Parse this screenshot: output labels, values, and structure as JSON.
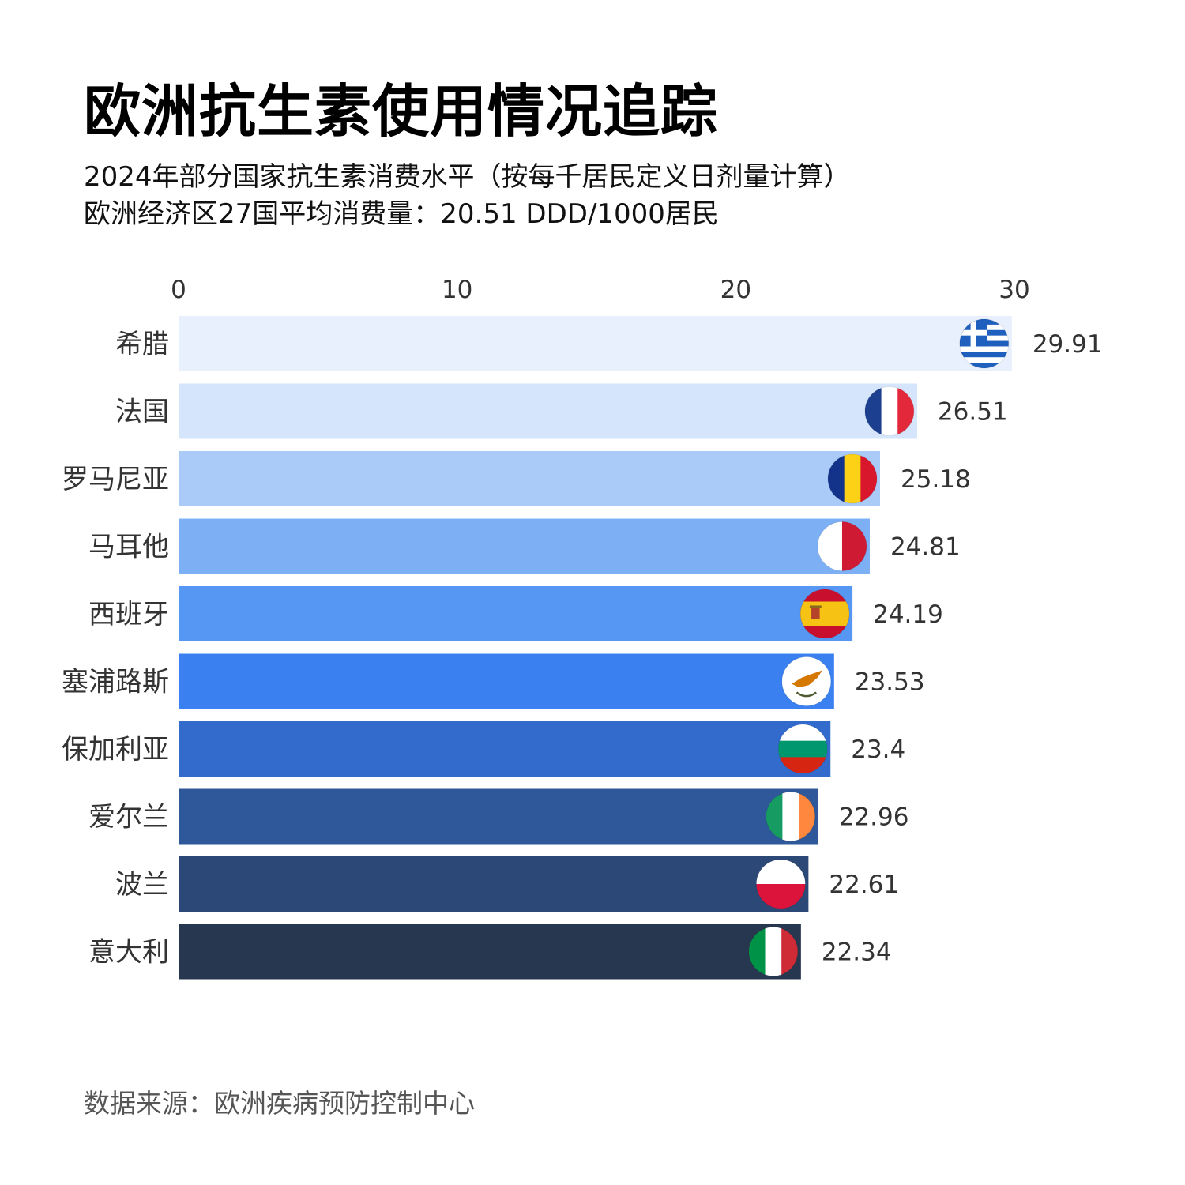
{
  "title": "欧洲抗生素使用情况追踪",
  "subtitle_line1": "2024年部分国家抗生素消费水平（按每千居民定义日剂量计算）",
  "subtitle_line2": "欧洲经济区27国平均消费量：20.51 DDD/1000居民",
  "source": "数据来源：欧洲疾病预防控制中心",
  "chart_data": {
    "type": "bar",
    "orientation": "horizontal",
    "categories": [
      "希腊",
      "法国",
      "罗马尼亚",
      "马耳他",
      "西班牙",
      "塞浦路斯",
      "保加利亚",
      "爱尔兰",
      "波兰",
      "意大利"
    ],
    "values": [
      29.91,
      26.51,
      25.18,
      24.81,
      24.19,
      23.53,
      23.4,
      22.96,
      22.61,
      22.34
    ],
    "value_labels": [
      "29.91",
      "26.51",
      "25.18",
      "24.81",
      "24.19",
      "23.53",
      "23.4",
      "22.96",
      "22.61",
      "22.34"
    ],
    "xlim": [
      0,
      30
    ],
    "xticks": [
      "0",
      "10",
      "20",
      "30"
    ],
    "x_axis_position": "top",
    "grid": false,
    "bar_colors": [
      "#e8f0fd",
      "#d5e5fb",
      "#aacbf7",
      "#7daff4",
      "#5597f2",
      "#3a80f0",
      "#336bcd",
      "#2e5899",
      "#2c4876",
      "#27374f"
    ],
    "flag_icons": [
      "greece-flag-icon",
      "france-flag-icon",
      "romania-flag-icon",
      "malta-flag-icon",
      "spain-flag-icon",
      "cyprus-flag-icon",
      "bulgaria-flag-icon",
      "ireland-flag-icon",
      "poland-flag-icon",
      "italy-flag-icon"
    ]
  }
}
